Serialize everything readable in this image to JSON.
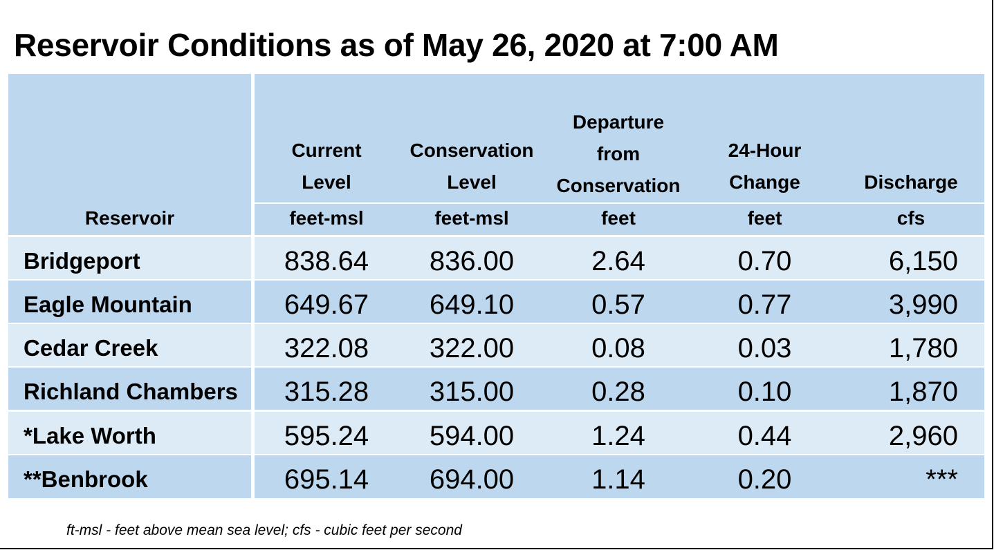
{
  "title": "Reservoir Conditions as of May 26, 2020 at 7:00 AM",
  "columns": [
    {
      "label": "Reservoir",
      "unit": ""
    },
    {
      "label_lines": [
        "Current",
        "Level"
      ],
      "unit": "feet-msl"
    },
    {
      "label_lines": [
        "Conservation",
        "Level"
      ],
      "unit": "feet-msl"
    },
    {
      "label_lines": [
        "Departure",
        "from",
        "Conservation"
      ],
      "unit": "feet"
    },
    {
      "label_lines": [
        "24-Hour",
        "Change"
      ],
      "unit": "feet"
    },
    {
      "label_lines": [
        "Discharge"
      ],
      "unit": "cfs"
    }
  ],
  "rows": [
    {
      "name": "Bridgeport",
      "current": "838.64",
      "conservation": "836.00",
      "departure": "2.64",
      "change": "0.70",
      "discharge": "6,150"
    },
    {
      "name": "Eagle Mountain",
      "current": "649.67",
      "conservation": "649.10",
      "departure": "0.57",
      "change": "0.77",
      "discharge": "3,990"
    },
    {
      "name": "Cedar Creek",
      "current": "322.08",
      "conservation": "322.00",
      "departure": "0.08",
      "change": "0.03",
      "discharge": "1,780"
    },
    {
      "name": "Richland Chambers",
      "current": "315.28",
      "conservation": "315.00",
      "departure": "0.28",
      "change": "0.10",
      "discharge": "1,870"
    },
    {
      "name": "*Lake Worth",
      "current": "595.24",
      "conservation": "594.00",
      "departure": "1.24",
      "change": "0.44",
      "discharge": "2,960"
    },
    {
      "name": "**Benbrook",
      "current": "695.14",
      "conservation": "694.00",
      "departure": "1.14",
      "change": "0.20",
      "discharge": "***"
    }
  ],
  "footnote": "ft-msl - feet above mean sea level; cfs - cubic feet per second"
}
